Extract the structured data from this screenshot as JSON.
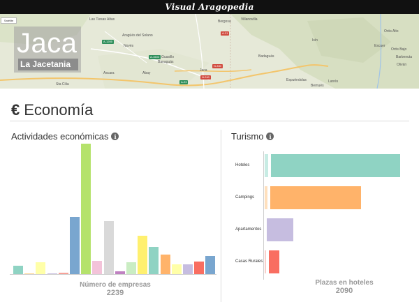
{
  "header": {
    "brand": "Visual Aragopedia"
  },
  "map": {
    "satellite_button": "Satélite",
    "places": [
      "Las Tiesas Altas",
      "Aragüés del Solano",
      "Novés",
      "Guasillo",
      "Banaguás",
      "Jaca",
      "Bergosa",
      "Villanovilla",
      "Badaguás",
      "Espuéndolas",
      "Bernués",
      "Larrés",
      "Ascara",
      "Atarés",
      "Sta Cilia",
      "Isín",
      "Escuer",
      "Orós Alto",
      "Orós Bajo",
      "Barbenuta",
      "Oliván",
      "Llis",
      "Abay"
    ],
    "roads": [
      "A-1205",
      "N-330",
      "A-1603",
      "A-23",
      "N-240",
      "A-21"
    ]
  },
  "town": {
    "name": "Jaca",
    "comarca": "La Jacetania"
  },
  "section": {
    "title": "Economía",
    "icon": "euro-icon"
  },
  "panels": {
    "activities": {
      "title": "Actividades económicas",
      "caption_label": "Número de empresas",
      "caption_value": "2239"
    },
    "tourism": {
      "title": "Turismo",
      "caption_label": "Plazas en hoteles",
      "caption_value": "2090"
    }
  },
  "chart_data": [
    {
      "type": "bar",
      "title": "Actividades económicas",
      "xlabel": "Número de empresas",
      "total": 2239,
      "values": [
        24,
        3,
        34,
        3,
        4,
        164,
        374,
        39,
        152,
        8,
        34,
        111,
        79,
        57,
        29,
        29,
        36,
        52
      ],
      "colors": [
        "#8fd3c3",
        "#ffd58f",
        "#ffffa8",
        "#c6bde0",
        "#f7a198",
        "#79a6cf",
        "#b5e26c",
        "#f3c3d9",
        "#d9d9d9",
        "#bf81c1",
        "#caedc3",
        "#fff06f",
        "#8fd3c3",
        "#ffb36a",
        "#ffffa8",
        "#c6bde0",
        "#f96e61",
        "#79a6cf"
      ]
    },
    {
      "type": "bar",
      "orientation": "horizontal",
      "title": "Turismo",
      "xlabel": "Plazas en hoteles",
      "total": 2090,
      "categories": [
        "Hoteles",
        "Campings",
        "Apartamentos",
        "Casas Rurales"
      ],
      "series": [
        {
          "values": [
            5,
            4,
            0,
            2
          ],
          "colors": [
            "#c8ece4",
            "#ffe0bd",
            "#e6e3f0",
            "#f8d0cc"
          ]
        },
        {
          "values": [
            185,
            130,
            38,
            15
          ],
          "colors": [
            "#8fd3c3",
            "#ffb36a",
            "#c6bde0",
            "#f96e61"
          ]
        }
      ]
    }
  ]
}
